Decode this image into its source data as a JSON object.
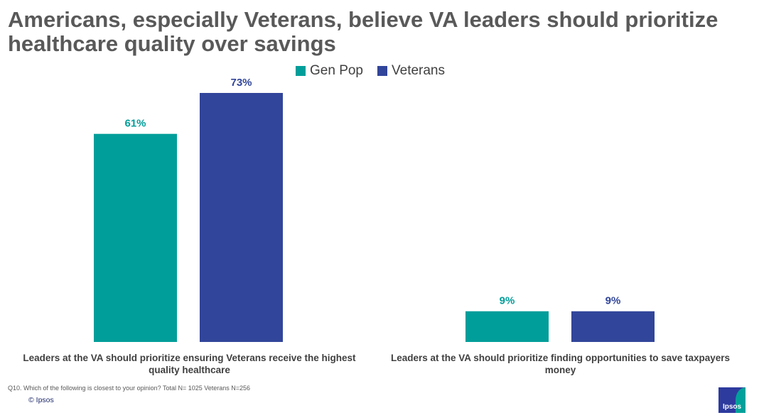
{
  "title": "Americans, especially Veterans, believe VA leaders should prioritize healthcare quality over savings",
  "legend": [
    {
      "name": "Gen Pop",
      "color": "#009e9a"
    },
    {
      "name": "Veterans",
      "color": "#31459a"
    }
  ],
  "chart_data": {
    "type": "bar",
    "categories": [
      "Leaders at the VA should prioritize ensuring Veterans receive the highest quality healthcare",
      "Leaders at the VA should prioritize finding opportunities to save taxpayers money"
    ],
    "series": [
      {
        "name": "Gen Pop",
        "values": [
          61,
          9
        ],
        "labels": [
          "61%",
          "9%"
        ],
        "color": "#009e9a"
      },
      {
        "name": "Veterans",
        "values": [
          73,
          9
        ],
        "labels": [
          "73%",
          "9%"
        ],
        "color": "#31459a"
      }
    ],
    "ylim": [
      0,
      73
    ],
    "grid": false,
    "legend_position": "top-center"
  },
  "footnote": "Q10. Which of the following is closest to your opinion? Total N= 1025 Veterans N=256",
  "copyright": "© Ipsos",
  "logo_text": "Ipsos",
  "logo_colors": {
    "base": "#2d3b9e",
    "accent": "#00a19a"
  }
}
